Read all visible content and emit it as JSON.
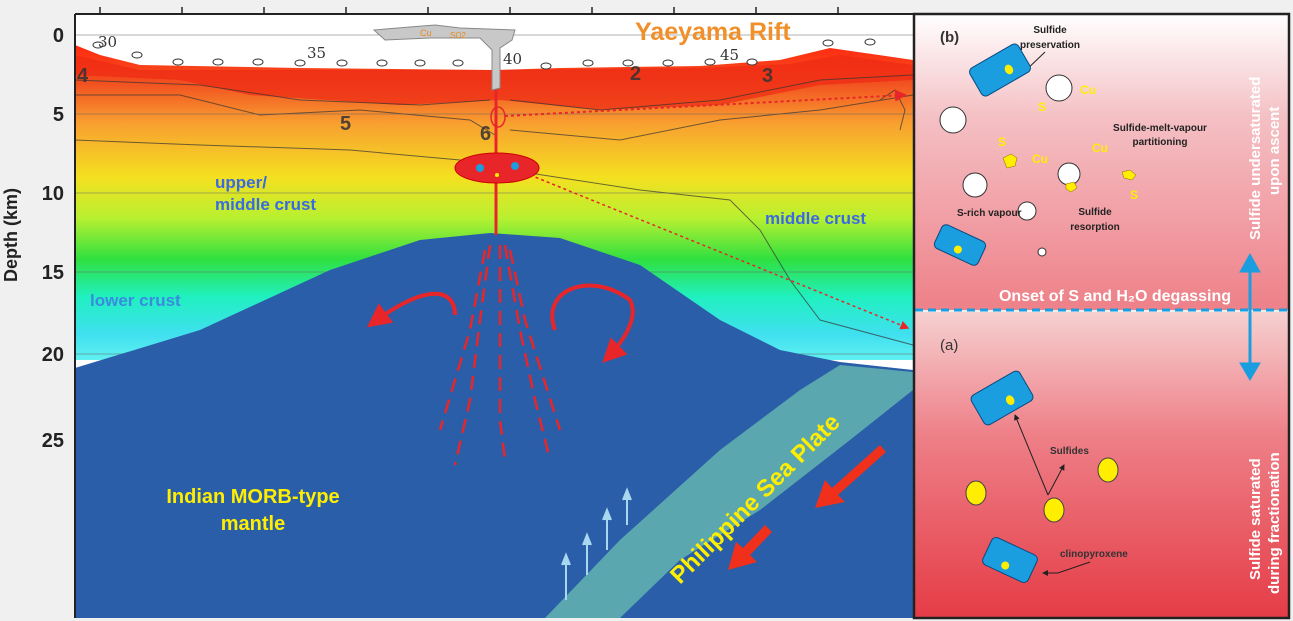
{
  "left_panel": {
    "axis_label": "Depth (km)",
    "depth_ticks": [
      "0",
      "5",
      "10",
      "15",
      "20",
      "25"
    ],
    "station_labels": [
      "30",
      "35",
      "40",
      "45"
    ],
    "contour_labels": [
      "4",
      "2",
      "3",
      "5",
      "6"
    ],
    "title": "Yaeyama Rift",
    "plume_labels": {
      "cu": "Cu",
      "so2": "SO2"
    },
    "regions": {
      "upper_crust": "upper/",
      "upper_crust_2": "middle crust",
      "middle_crust": "middle crust",
      "lower_crust": "lower crust",
      "mantle_1": "Indian MORB-type",
      "mantle_2": "mantle",
      "plate": "Philippine Sea Plate"
    }
  },
  "right_panel": {
    "panel_b": {
      "label": "(b)",
      "sulfide_preservation_1": "Sulfide",
      "sulfide_preservation_2": "preservation",
      "partitioning_1": "Sulfide-melt-vapour",
      "partitioning_2": "partitioning",
      "vapour": "S-rich vapour",
      "resorption_1": "Sulfide",
      "resorption_2": "resorption",
      "s": "S",
      "cu": "Cu",
      "side_1": "Sulfide undersaturated",
      "side_2": "upon ascent"
    },
    "divider_label": "Onset of S and H₂O degassing",
    "panel_a": {
      "label": "(a)",
      "sulfides": "Sulfides",
      "cpx": "clinopyroxene",
      "side_1": "Sulfide saturated",
      "side_2": "during fractionation"
    }
  },
  "colors": {
    "mantle": "#2a5ea8",
    "plate": "#5aa7b0",
    "magma": "#e8262a",
    "title": "#f0902a",
    "crystal": "#1a9ee0",
    "sulfide": "#ffee00"
  }
}
